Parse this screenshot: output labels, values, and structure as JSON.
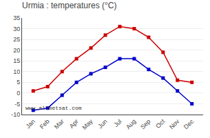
{
  "chart_data": {
    "type": "line",
    "title": "Urmia : temperatures (°C)",
    "categories": [
      "Jan",
      "Feb",
      "Mar",
      "Apr",
      "May",
      "Jun",
      "Jul",
      "Aug",
      "Sep",
      "Oct",
      "Nov",
      "Dec"
    ],
    "series": [
      {
        "color": "#cc0000",
        "marker": "square",
        "values": [
          1,
          3,
          10,
          16,
          21,
          27,
          31,
          30,
          26,
          19,
          6,
          5
        ]
      },
      {
        "color": "#0000cc",
        "marker": "square",
        "values": [
          -8,
          -7,
          -1,
          5,
          9,
          12,
          16,
          16,
          11,
          7,
          1,
          -5
        ]
      }
    ],
    "ylim": [
      -10,
      35
    ],
    "yticks": [
      -10,
      -5,
      0,
      5,
      10,
      15,
      20,
      25,
      30,
      35
    ],
    "grid": true,
    "annotations": [
      "www.allmetsat.com"
    ]
  }
}
